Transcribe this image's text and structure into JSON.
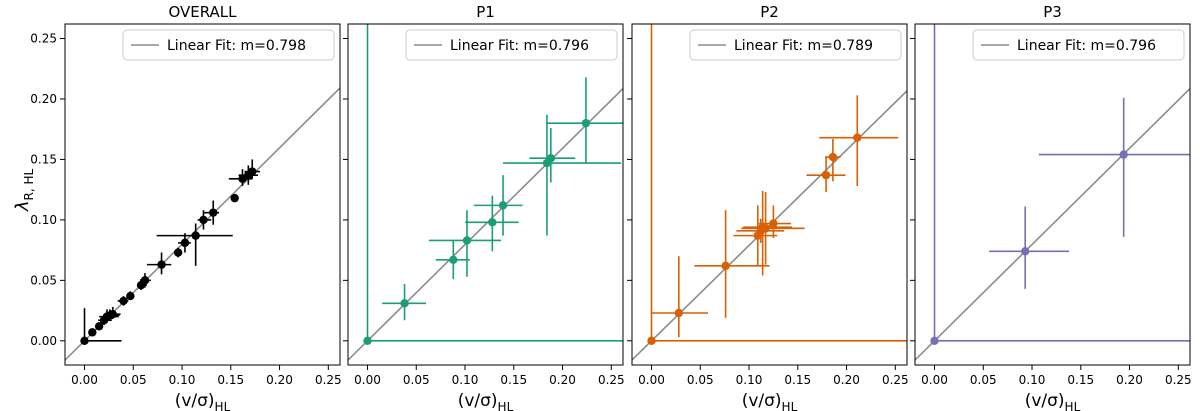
{
  "figure": {
    "xlabel_main": "(v/σ)",
    "xlabel_sub": "HL",
    "ylabel_main": "λ",
    "ylabel_sub": "R, HL"
  },
  "chart_data": [
    {
      "type": "scatter",
      "title": "OVERALL",
      "color": "#000000",
      "legend": "Linear Fit: m=0.798",
      "fit_slope": 0.798,
      "fit_color": "#8c8c8c",
      "xlim": [
        -0.02,
        0.262
      ],
      "ylim": [
        -0.02,
        0.262
      ],
      "xticks": [
        "0.00",
        "0.05",
        "0.10",
        "0.15",
        "0.20",
        "0.25"
      ],
      "yticks": [
        "0.00",
        "0.05",
        "0.10",
        "0.15",
        "0.20",
        "0.25"
      ],
      "points": [
        {
          "x": 0.0,
          "y": 0.0,
          "xerr": [
            0.0,
            0.038
          ],
          "yerr": [
            0.0,
            0.027
          ]
        },
        {
          "x": 0.008,
          "y": 0.007,
          "xerr": [
            0.003,
            0.004
          ],
          "yerr": [
            0.002,
            0.003
          ]
        },
        {
          "x": 0.015,
          "y": 0.012,
          "xerr": [
            0.003,
            0.003
          ],
          "yerr": [
            0.003,
            0.003
          ]
        },
        {
          "x": 0.02,
          "y": 0.017,
          "xerr": [
            0.006,
            0.008
          ],
          "yerr": [
            0.004,
            0.005
          ]
        },
        {
          "x": 0.023,
          "y": 0.02,
          "xerr": [
            0.008,
            0.012
          ],
          "yerr": [
            0.005,
            0.006
          ]
        },
        {
          "x": 0.026,
          "y": 0.021,
          "xerr": [
            0.006,
            0.01
          ],
          "yerr": [
            0.004,
            0.005
          ]
        },
        {
          "x": 0.029,
          "y": 0.022,
          "xerr": [
            0.005,
            0.008
          ],
          "yerr": [
            0.004,
            0.006
          ]
        },
        {
          "x": 0.04,
          "y": 0.033,
          "xerr": [
            0.006,
            0.005
          ],
          "yerr": [
            0.004,
            0.004
          ]
        },
        {
          "x": 0.047,
          "y": 0.037,
          "xerr": [
            0.004,
            0.004
          ],
          "yerr": [
            0.003,
            0.004
          ]
        },
        {
          "x": 0.058,
          "y": 0.046,
          "xerr": [
            0.004,
            0.006
          ],
          "yerr": [
            0.004,
            0.005
          ]
        },
        {
          "x": 0.062,
          "y": 0.05,
          "xerr": [
            0.005,
            0.006
          ],
          "yerr": [
            0.006,
            0.006
          ]
        },
        {
          "x": 0.079,
          "y": 0.063,
          "xerr": [
            0.015,
            0.01
          ],
          "yerr": [
            0.008,
            0.01
          ]
        },
        {
          "x": 0.096,
          "y": 0.073,
          "xerr": [
            0.003,
            0.003
          ],
          "yerr": [
            0.004,
            0.004
          ]
        },
        {
          "x": 0.103,
          "y": 0.081,
          "xerr": [
            0.007,
            0.006
          ],
          "yerr": [
            0.008,
            0.008
          ]
        },
        {
          "x": 0.114,
          "y": 0.087,
          "xerr": [
            0.04,
            0.038
          ],
          "yerr": [
            0.025,
            0.01
          ]
        },
        {
          "x": 0.122,
          "y": 0.1,
          "xerr": [
            0.006,
            0.008
          ],
          "yerr": [
            0.008,
            0.008
          ]
        },
        {
          "x": 0.132,
          "y": 0.106,
          "xerr": [
            0.01,
            0.006
          ],
          "yerr": [
            0.01,
            0.01
          ]
        },
        {
          "x": 0.154,
          "y": 0.118,
          "xerr": [
            0.0,
            0.0
          ],
          "yerr": [
            0.0,
            0.0
          ]
        },
        {
          "x": 0.162,
          "y": 0.134,
          "xerr": [
            0.014,
            0.01
          ],
          "yerr": [
            0.006,
            0.008
          ]
        },
        {
          "x": 0.168,
          "y": 0.137,
          "xerr": [
            0.01,
            0.01
          ],
          "yerr": [
            0.008,
            0.008
          ]
        },
        {
          "x": 0.172,
          "y": 0.14,
          "xerr": [
            0.008,
            0.008
          ],
          "yerr": [
            0.006,
            0.01
          ]
        }
      ]
    },
    {
      "type": "scatter",
      "title": "P1",
      "color": "#1b9e77",
      "legend": "Linear Fit: m=0.796",
      "fit_slope": 0.796,
      "fit_color": "#8c8c8c",
      "xlim": [
        -0.02,
        0.262
      ],
      "ylim": [
        -0.02,
        0.262
      ],
      "xticks": [
        "0.00",
        "0.05",
        "0.10",
        "0.15",
        "0.20",
        "0.25"
      ],
      "yticks": [
        "0.00",
        "0.05",
        "0.10",
        "0.15",
        "0.20",
        "0.25"
      ],
      "points": [
        {
          "x": 0.0,
          "y": 0.0,
          "xerr": [
            0.0,
            0.262
          ],
          "yerr": [
            0.0,
            0.262
          ]
        },
        {
          "x": 0.038,
          "y": 0.031,
          "xerr": [
            0.023,
            0.022
          ],
          "yerr": [
            0.014,
            0.016
          ]
        },
        {
          "x": 0.088,
          "y": 0.067,
          "xerr": [
            0.018,
            0.017
          ],
          "yerr": [
            0.016,
            0.016
          ]
        },
        {
          "x": 0.102,
          "y": 0.083,
          "xerr": [
            0.039,
            0.035
          ],
          "yerr": [
            0.03,
            0.025
          ]
        },
        {
          "x": 0.128,
          "y": 0.098,
          "xerr": [
            0.028,
            0.027
          ],
          "yerr": [
            0.024,
            0.022
          ]
        },
        {
          "x": 0.139,
          "y": 0.112,
          "xerr": [
            0.03,
            0.02
          ],
          "yerr": [
            0.025,
            0.025
          ]
        },
        {
          "x": 0.184,
          "y": 0.147,
          "xerr": [
            0.045,
            0.076
          ],
          "yerr": [
            0.06,
            0.04
          ]
        },
        {
          "x": 0.188,
          "y": 0.151,
          "xerr": [
            0.022,
            0.025
          ],
          "yerr": [
            0.02,
            0.025
          ]
        },
        {
          "x": 0.224,
          "y": 0.18,
          "xerr": [
            0.04,
            0.038
          ],
          "yerr": [
            0.033,
            0.038
          ]
        }
      ]
    },
    {
      "type": "scatter",
      "title": "P2",
      "color": "#d95f02",
      "legend": "Linear Fit: m=0.789",
      "fit_slope": 0.789,
      "fit_color": "#8c8c8c",
      "xlim": [
        -0.02,
        0.262
      ],
      "ylim": [
        -0.02,
        0.262
      ],
      "xticks": [
        "0.00",
        "0.05",
        "0.10",
        "0.15",
        "0.20",
        "0.25"
      ],
      "yticks": [
        "0.00",
        "0.05",
        "0.10",
        "0.15",
        "0.20",
        "0.25"
      ],
      "points": [
        {
          "x": 0.0,
          "y": 0.0,
          "xerr": [
            0.0,
            0.262
          ],
          "yerr": [
            0.0,
            0.262
          ]
        },
        {
          "x": 0.028,
          "y": 0.023,
          "xerr": [
            0.028,
            0.03
          ],
          "yerr": [
            0.02,
            0.047
          ]
        },
        {
          "x": 0.076,
          "y": 0.062,
          "xerr": [
            0.032,
            0.045
          ],
          "yerr": [
            0.043,
            0.046
          ]
        },
        {
          "x": 0.109,
          "y": 0.087,
          "xerr": [
            0.025,
            0.02
          ],
          "yerr": [
            0.025,
            0.025
          ]
        },
        {
          "x": 0.112,
          "y": 0.091,
          "xerr": [
            0.025,
            0.024
          ],
          "yerr": [
            0.01,
            0.01
          ]
        },
        {
          "x": 0.114,
          "y": 0.094,
          "xerr": [
            0.02,
            0.03
          ],
          "yerr": [
            0.04,
            0.03
          ]
        },
        {
          "x": 0.117,
          "y": 0.093,
          "xerr": [
            0.025,
            0.04
          ],
          "yerr": [
            0.03,
            0.03
          ]
        },
        {
          "x": 0.125,
          "y": 0.097,
          "xerr": [
            0.015,
            0.018
          ],
          "yerr": [
            0.012,
            0.015
          ]
        },
        {
          "x": 0.179,
          "y": 0.137,
          "xerr": [
            0.02,
            0.02
          ],
          "yerr": [
            0.014,
            0.015
          ]
        },
        {
          "x": 0.186,
          "y": 0.152,
          "xerr": [
            0.008,
            0.008
          ],
          "yerr": [
            0.02,
            0.015
          ]
        },
        {
          "x": 0.211,
          "y": 0.168,
          "xerr": [
            0.039,
            0.042
          ],
          "yerr": [
            0.04,
            0.035
          ]
        }
      ]
    },
    {
      "type": "scatter",
      "title": "P3",
      "color": "#7570b3",
      "legend": "Linear Fit: m=0.796",
      "fit_slope": 0.796,
      "fit_color": "#8c8c8c",
      "xlim": [
        -0.02,
        0.262
      ],
      "ylim": [
        -0.02,
        0.262
      ],
      "xticks": [
        "0.00",
        "0.05",
        "0.10",
        "0.15",
        "0.20",
        "0.25"
      ],
      "yticks": [
        "0.00",
        "0.05",
        "0.10",
        "0.15",
        "0.20",
        "0.25"
      ],
      "points": [
        {
          "x": 0.0,
          "y": 0.0,
          "xerr": [
            0.0,
            0.262
          ],
          "yerr": [
            0.0,
            0.262
          ]
        },
        {
          "x": 0.093,
          "y": 0.074,
          "xerr": [
            0.037,
            0.045
          ],
          "yerr": [
            0.031,
            0.037
          ]
        },
        {
          "x": 0.194,
          "y": 0.154,
          "xerr": [
            0.087,
            0.068
          ],
          "yerr": [
            0.068,
            0.047
          ]
        }
      ]
    }
  ]
}
